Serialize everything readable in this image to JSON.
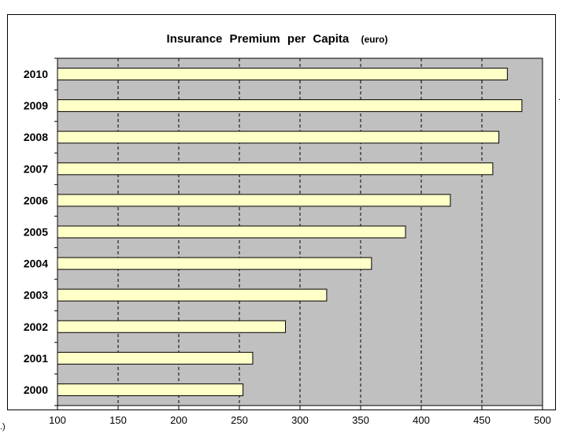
{
  "chart_data": {
    "type": "bar",
    "orientation": "horizontal",
    "title": "Insurance Premium per Capita",
    "title_unit": "(euro)",
    "categories": [
      "2010",
      "2009",
      "2008",
      "2007",
      "2006",
      "2005",
      "2004",
      "2003",
      "2002",
      "2001",
      "2000"
    ],
    "values": [
      471,
      483,
      464,
      459,
      424,
      387,
      359,
      322,
      288,
      261,
      253
    ],
    "xlim": [
      100,
      500
    ],
    "xticks": [
      100,
      150,
      200,
      250,
      300,
      350,
      400,
      450,
      500
    ],
    "grid": "vertical dashed",
    "legend": "none",
    "colors": {
      "bar_fill": "#FFFFC8",
      "bar_stroke": "#000000",
      "plot_bg": "#C0C0C0",
      "grid": "#000000"
    }
  }
}
